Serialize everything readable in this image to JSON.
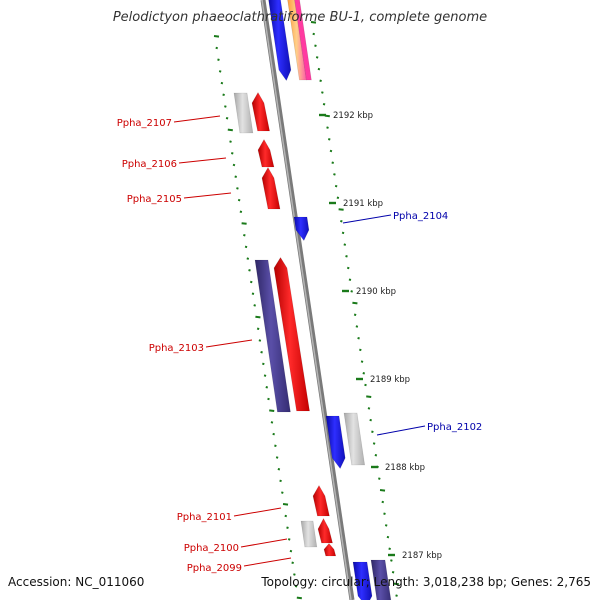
{
  "title": "Pelodictyon phaeoclathratiforme BU-1, complete genome",
  "footer": {
    "accession": "Accession: NC_011060",
    "summary": "Topology: circular; Length: 3,018,238 bp; Genes: 2,765"
  },
  "colors": {
    "forward_gene": "#ff1a1a",
    "reverse_gene_blue": "#1f1fe0",
    "reverse_gene_purple": "#4a3f8e",
    "pseudo_gene": "#c8c8c8",
    "label_red": "#cc0000",
    "label_blue": "#0000aa",
    "tick_green": "#1a7a1a",
    "backbone": "#8c8c8c"
  },
  "kbp_ticks": [
    "2192 kbp",
    "2191 kbp",
    "2190 kbp",
    "2189 kbp",
    "2188 kbp",
    "2187 kbp"
  ],
  "gene_labels": [
    "Ppha_2107",
    "Ppha_2106",
    "Ppha_2105",
    "Ppha_2104",
    "Ppha_2103",
    "Ppha_2102",
    "Ppha_2101",
    "Ppha_2100",
    "Ppha_2099"
  ]
}
